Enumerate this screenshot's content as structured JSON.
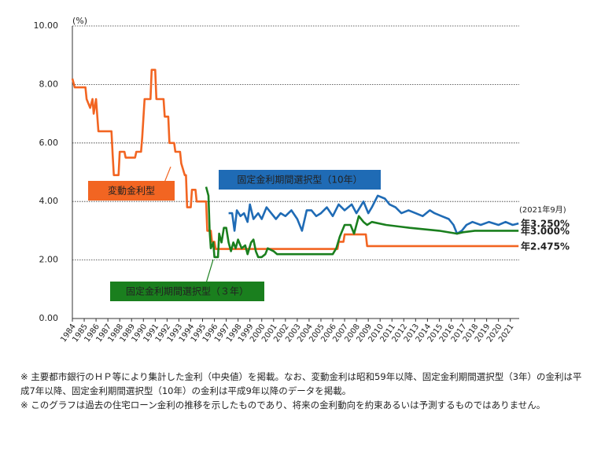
{
  "chart_data": {
    "type": "line",
    "unit_label": "(%)",
    "xlim": [
      1984,
      2021.75
    ],
    "xticks": [
      1984,
      1985,
      1986,
      1987,
      1988,
      1989,
      1990,
      1991,
      1992,
      1993,
      1994,
      1995,
      1996,
      1997,
      1998,
      1999,
      2000,
      2001,
      2002,
      2003,
      2004,
      2005,
      2006,
      2007,
      2008,
      2009,
      2010,
      2011,
      2012,
      2013,
      2014,
      2015,
      2016,
      2017,
      2018,
      2019,
      2020,
      2021
    ],
    "ylim": [
      0,
      10
    ],
    "yticks": [
      {
        "value": 0,
        "label": "0.00"
      },
      {
        "value": 2,
        "label": "2.00"
      },
      {
        "value": 4,
        "label": "4.00"
      },
      {
        "value": 6,
        "label": "6.00"
      },
      {
        "value": 8,
        "label": "8.00"
      },
      {
        "value": 10,
        "label": "10.00"
      }
    ],
    "grid": true,
    "end_date_label": "(2021年9月)",
    "series": [
      {
        "name": "変動金利型",
        "color": "#f26522",
        "end_label": "年2.475%",
        "x": [
          1984,
          1984.2,
          1985.1,
          1985.2,
          1985.5,
          1985.7,
          1985.8,
          1986.0,
          1986.2,
          1987.3,
          1987.4,
          1987.5,
          1987.9,
          1988.0,
          1988.4,
          1988.5,
          1989.3,
          1989.4,
          1989.8,
          1989.9,
          1990.1,
          1990.6,
          1990.7,
          1991.0,
          1991.1,
          1991.7,
          1991.8,
          1992.1,
          1992.2,
          1992.6,
          1992.7,
          1993.1,
          1993.2,
          1993.5,
          1993.6,
          1993.7,
          1994.0,
          1994.1,
          1994.4,
          1994.5,
          1995.3,
          1995.4,
          1995.7,
          1995.8,
          1996.0,
          1996.1,
          2006.4,
          2006.5,
          2006.9,
          2007.0,
          2008.8,
          2008.9,
          2021.7
        ],
        "values": [
          8.2,
          7.9,
          7.9,
          7.5,
          7.2,
          7.5,
          7.0,
          7.5,
          6.4,
          6.4,
          5.6,
          4.9,
          4.9,
          5.7,
          5.7,
          5.5,
          5.5,
          5.7,
          5.7,
          6.2,
          7.5,
          7.5,
          8.5,
          8.5,
          7.5,
          7.5,
          6.9,
          6.9,
          6.0,
          6.0,
          5.7,
          5.7,
          5.3,
          4.9,
          4.9,
          3.8,
          3.8,
          4.4,
          4.4,
          4.0,
          4.0,
          3.0,
          3.0,
          2.625,
          2.625,
          2.375,
          2.375,
          2.625,
          2.625,
          2.875,
          2.875,
          2.475,
          2.475
        ]
      },
      {
        "name": "固定金利期間選択型（10年）",
        "color": "#1f6bb5",
        "end_label": "年3.250%",
        "x": [
          1997.2,
          1997.5,
          1997.7,
          1997.9,
          1998.2,
          1998.5,
          1998.8,
          1999.0,
          1999.3,
          1999.7,
          2000.0,
          2000.4,
          2000.8,
          2001.2,
          2001.6,
          2002.0,
          2002.5,
          2003.0,
          2003.4,
          2003.8,
          2004.2,
          2004.6,
          2005.0,
          2005.5,
          2006.0,
          2006.5,
          2007.0,
          2007.6,
          2008.0,
          2008.6,
          2009.0,
          2009.3,
          2009.8,
          2010.4,
          2010.8,
          2011.3,
          2011.8,
          2012.4,
          2013.0,
          2013.6,
          2014.2,
          2014.6,
          2015.2,
          2015.8,
          2016.2,
          2016.5,
          2016.9,
          2017.3,
          2017.8,
          2018.5,
          2019.2,
          2020.0,
          2020.6,
          2021.2,
          2021.7
        ],
        "values": [
          3.6,
          3.6,
          3.0,
          3.7,
          3.5,
          3.6,
          3.3,
          3.9,
          3.4,
          3.6,
          3.4,
          3.8,
          3.6,
          3.4,
          3.6,
          3.5,
          3.7,
          3.4,
          3.0,
          3.7,
          3.7,
          3.5,
          3.6,
          3.8,
          3.5,
          3.9,
          3.7,
          3.9,
          3.6,
          4.0,
          3.6,
          3.8,
          4.2,
          4.1,
          3.9,
          3.8,
          3.6,
          3.7,
          3.6,
          3.5,
          3.7,
          3.6,
          3.5,
          3.4,
          3.2,
          2.9,
          3.0,
          3.2,
          3.3,
          3.2,
          3.3,
          3.2,
          3.3,
          3.2,
          3.25
        ]
      },
      {
        "name": "固定金利期間選択型（３年）",
        "color": "#1a7f1e",
        "end_label": "年3.000%",
        "x": [
          1995.3,
          1995.5,
          1995.6,
          1995.7,
          1995.9,
          1996.0,
          1996.3,
          1996.4,
          1996.6,
          1996.8,
          1997.0,
          1997.2,
          1997.4,
          1997.6,
          1997.8,
          1998.0,
          1998.3,
          1998.6,
          1998.8,
          1999.1,
          1999.3,
          1999.5,
          1999.7,
          2000.0,
          2000.3,
          2000.5,
          2001.0,
          2001.3,
          2006.0,
          2006.3,
          2006.6,
          2007.0,
          2007.5,
          2007.8,
          2008.2,
          2008.6,
          2008.9,
          2009.3,
          2010.5,
          2012.5,
          2015.0,
          2016.5,
          2017.0,
          2018.0,
          2021.7
        ],
        "values": [
          4.5,
          4.2,
          3.0,
          2.4,
          2.6,
          2.1,
          2.1,
          2.9,
          2.6,
          3.1,
          3.1,
          2.6,
          2.3,
          2.6,
          2.4,
          2.7,
          2.4,
          2.5,
          2.2,
          2.6,
          2.7,
          2.3,
          2.1,
          2.1,
          2.2,
          2.4,
          2.3,
          2.2,
          2.2,
          2.4,
          2.8,
          3.2,
          3.2,
          2.9,
          3.5,
          3.3,
          3.2,
          3.3,
          3.2,
          3.1,
          3.0,
          2.9,
          2.95,
          3.0,
          3.0
        ]
      }
    ]
  },
  "notes": [
    "※ 主要都市銀行のＨＰ等により集計した金利（中央値）を掲載。なお、変動金利は昭和59年以降、固定金利期間選択型（3年）の金利は平成7年以降、固定金利期間選択型（10年）の金利は平成9年以降のデータを掲載。",
    "※ このグラフは過去の住宅ローン金利の推移を示したものであり、将来の金利動向を約束あるいは予測するものではありません。"
  ]
}
